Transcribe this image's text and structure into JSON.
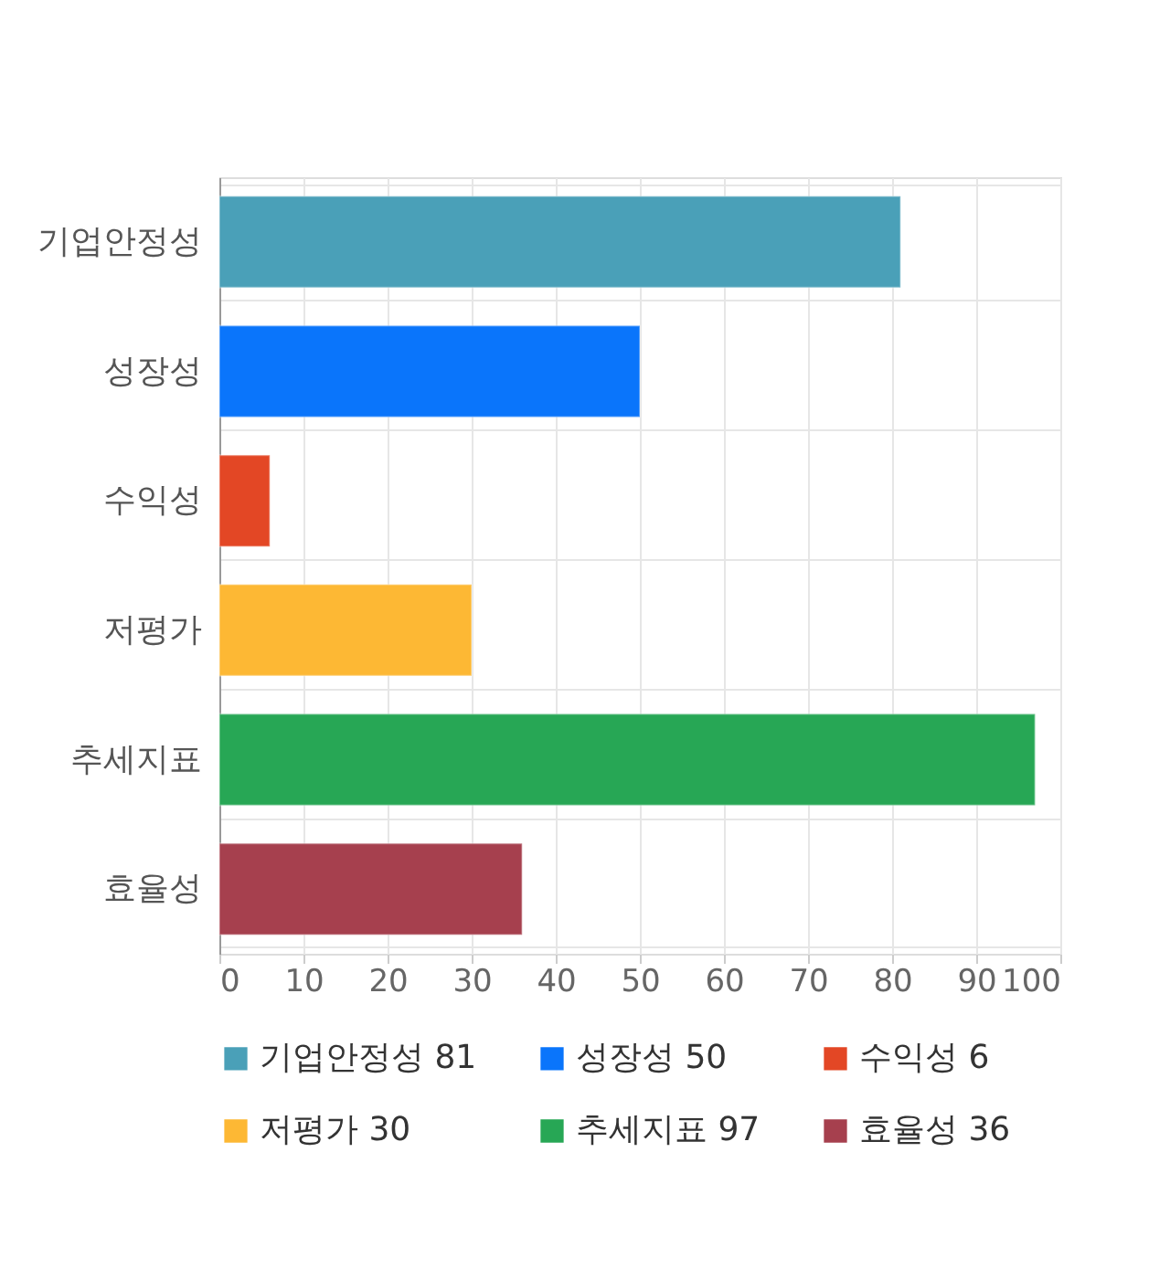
{
  "chart_data": {
    "type": "bar",
    "orientation": "horizontal",
    "categories": [
      "기업안정성",
      "성장성",
      "수익성",
      "저평가",
      "추세지표",
      "효율성"
    ],
    "series": [
      {
        "name": "기업안정성 81",
        "color": "#4aa0b8",
        "values": [
          81,
          null,
          null,
          null,
          null,
          null
        ]
      },
      {
        "name": "성장성 50",
        "color": "#0a75fb",
        "values": [
          null,
          50,
          null,
          null,
          null,
          null
        ]
      },
      {
        "name": "수익성 6",
        "color": "#e34725",
        "values": [
          null,
          null,
          6,
          null,
          null,
          null
        ]
      },
      {
        "name": "저평가 30",
        "color": "#fdb834",
        "values": [
          null,
          null,
          null,
          30,
          null,
          null
        ]
      },
      {
        "name": "추세지표 97",
        "color": "#27a755",
        "values": [
          null,
          null,
          null,
          null,
          97,
          null
        ]
      },
      {
        "name": "효율성 36",
        "color": "#a6404e",
        "values": [
          null,
          null,
          null,
          null,
          null,
          36
        ]
      }
    ],
    "xlim": [
      0,
      100
    ],
    "xticks": [
      0,
      10,
      20,
      30,
      40,
      50,
      60,
      70,
      80,
      90,
      100
    ],
    "grid": true,
    "legend": "bottom"
  }
}
